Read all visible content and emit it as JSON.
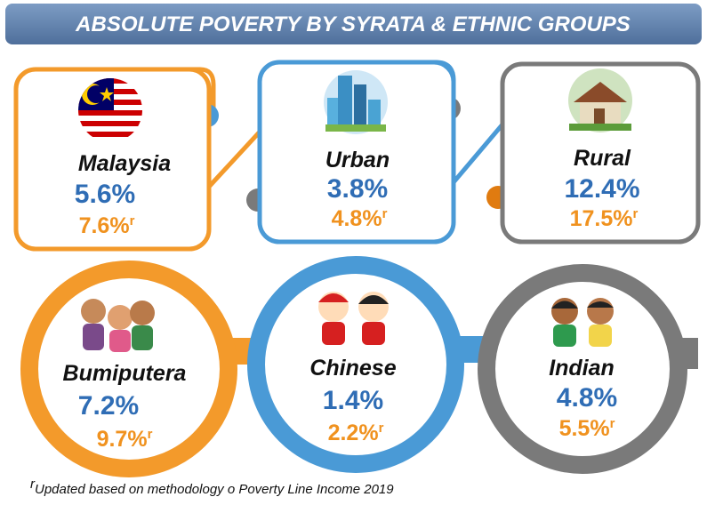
{
  "title": "ABSOLUTE POVERTY BY SYRATA & ETHNIC GROUPS",
  "revised_mark": "r",
  "groups": [
    {
      "label": "Malaysia",
      "value": "5.6%",
      "revised": "7.6%"
    },
    {
      "label": "Urban",
      "value": "3.8%",
      "revised": "4.8%"
    },
    {
      "label": "Rural",
      "value": "12.4%",
      "revised": "17.5%"
    },
    {
      "label": "Bumiputera",
      "value": "7.2%",
      "revised": "9.7%"
    },
    {
      "label": "Chinese",
      "value": "1.4%",
      "revised": "2.2%"
    },
    {
      "label": "Indian",
      "value": "4.8%",
      "revised": "5.5%"
    }
  ],
  "footnote": "Updated based on methodology o Poverty Line Income 2019"
}
